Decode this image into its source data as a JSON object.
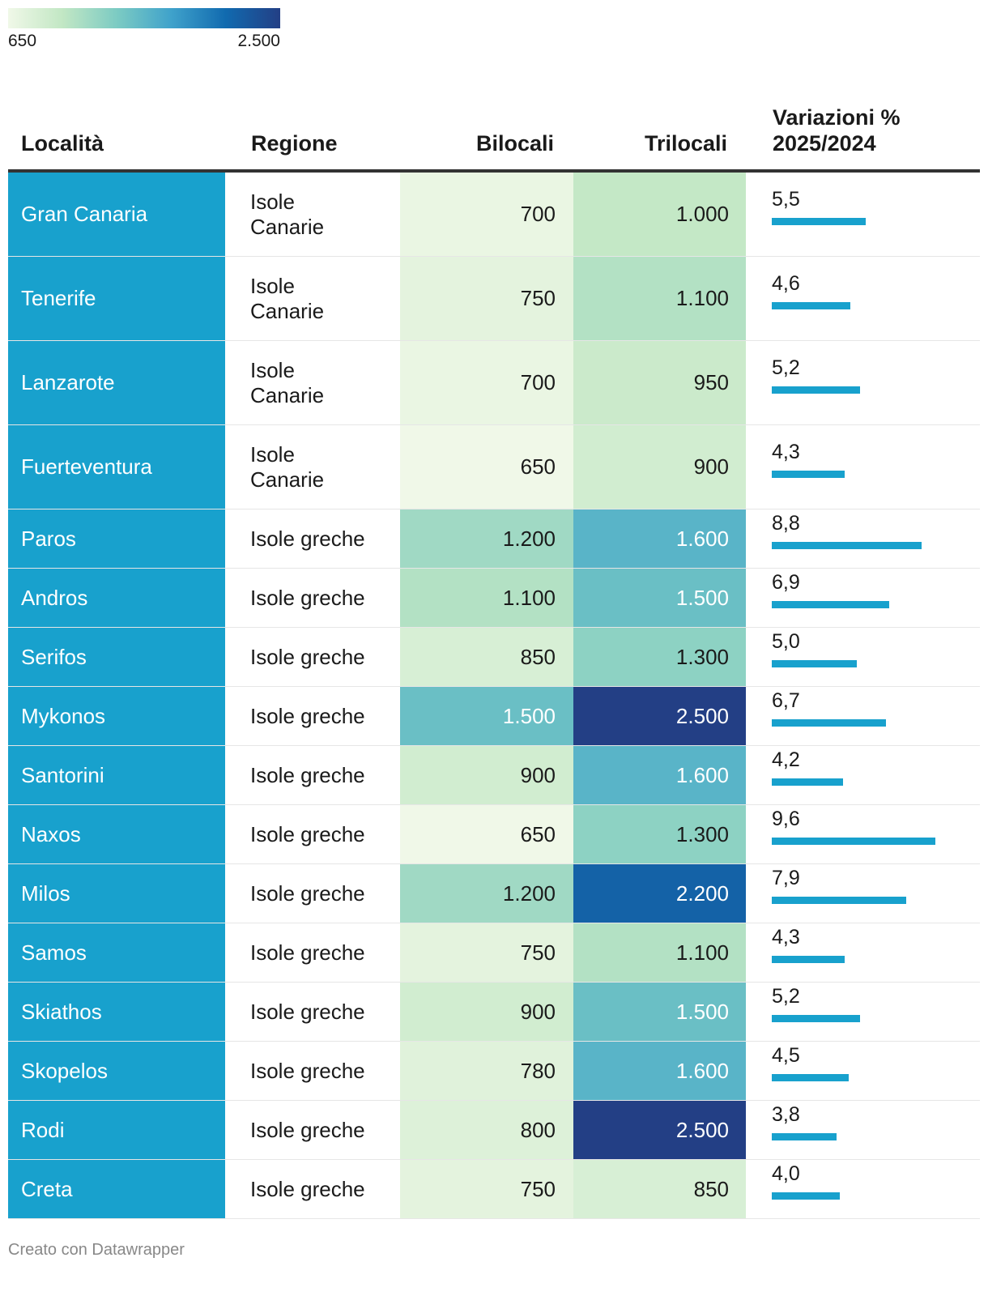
{
  "legend": {
    "min_label": "650",
    "max_label": "2.500",
    "min": 650,
    "max": 2500,
    "colors": [
      "#f0f8e8",
      "#c2e7c4",
      "#7ccbc3",
      "#3fa2cb",
      "#116aaf",
      "#233f85"
    ]
  },
  "header": {
    "loc": "Località",
    "reg": "Regione",
    "bil": "Bilocali",
    "tri": "Trilocali",
    "var_line1": "Variazioni %",
    "var_line2": "2025/2024"
  },
  "footer": "Creato con Datawrapper",
  "chart_data": {
    "type": "table",
    "columns": [
      "Località",
      "Regione",
      "Bilocali",
      "Trilocali",
      "Variazioni % 2025/2024"
    ],
    "bar_max": 9.6,
    "rows": [
      {
        "loc": "Gran Canaria",
        "reg": "Isole Canarie",
        "bil": "700",
        "tri": "1.000",
        "var": "5,5"
      },
      {
        "loc": "Tenerife",
        "reg": "Isole Canarie",
        "bil": "750",
        "tri": "1.100",
        "var": "4,6"
      },
      {
        "loc": "Lanzarote",
        "reg": "Isole Canarie",
        "bil": "700",
        "tri": "950",
        "var": "5,2"
      },
      {
        "loc": "Fuerteventura",
        "reg": "Isole Canarie",
        "bil": "650",
        "tri": "900",
        "var": "4,3"
      },
      {
        "loc": "Paros",
        "reg": "Isole greche",
        "bil": "1.200",
        "tri": "1.600",
        "var": "8,8"
      },
      {
        "loc": "Andros",
        "reg": "Isole greche",
        "bil": "1.100",
        "tri": "1.500",
        "var": "6,9"
      },
      {
        "loc": "Serifos",
        "reg": "Isole greche",
        "bil": "850",
        "tri": "1.300",
        "var": "5,0"
      },
      {
        "loc": "Mykonos",
        "reg": "Isole greche",
        "bil": "1.500",
        "tri": "2.500",
        "var": "6,7"
      },
      {
        "loc": "Santorini",
        "reg": "Isole greche",
        "bil": "900",
        "tri": "1.600",
        "var": "4,2"
      },
      {
        "loc": "Naxos",
        "reg": "Isole greche",
        "bil": "650",
        "tri": "1.300",
        "var": "9,6"
      },
      {
        "loc": "Milos",
        "reg": "Isole greche",
        "bil": "1.200",
        "tri": "2.200",
        "var": "7,9"
      },
      {
        "loc": "Samos",
        "reg": "Isole greche",
        "bil": "750",
        "tri": "1.100",
        "var": "4,3"
      },
      {
        "loc": "Skiathos",
        "reg": "Isole greche",
        "bil": "900",
        "tri": "1.500",
        "var": "5,2"
      },
      {
        "loc": "Skopelos",
        "reg": "Isole greche",
        "bil": "780",
        "tri": "1.600",
        "var": "4,5"
      },
      {
        "loc": "Rodi",
        "reg": "Isole greche",
        "bil": "800",
        "tri": "2.500",
        "var": "3,8"
      },
      {
        "loc": "Creta",
        "reg": "Isole greche",
        "bil": "750",
        "tri": "850",
        "var": "4,0"
      }
    ]
  }
}
